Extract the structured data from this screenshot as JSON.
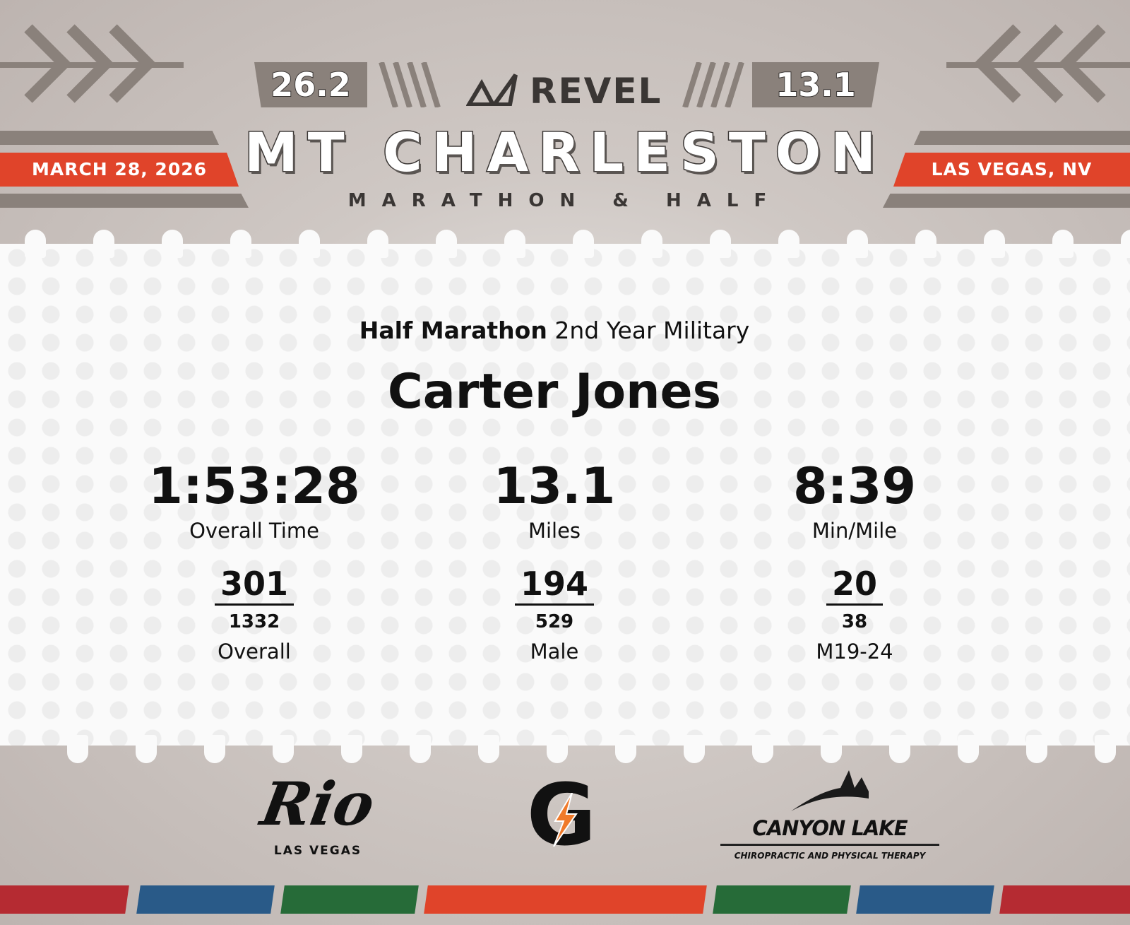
{
  "header": {
    "marathon_distance": "26.2",
    "half_distance": "13.1",
    "brand": "REVEL",
    "title": "MT CHARLESTON",
    "subtitle": "MARATHON & HALF",
    "date": "MARCH 28, 2026",
    "location": "LAS VEGAS, NV"
  },
  "result": {
    "race": "Half Marathon",
    "division": "2nd Year Military",
    "name": "Carter Jones",
    "stats": [
      {
        "value": "1:53:28",
        "label": "Overall Time"
      },
      {
        "value": "13.1",
        "label": "Miles"
      },
      {
        "value": "8:39",
        "label": "Min/Mile"
      }
    ],
    "ranks": [
      {
        "place": "301",
        "total": "1332",
        "label": "Overall"
      },
      {
        "place": "194",
        "total": "529",
        "label": "Male"
      },
      {
        "place": "20",
        "total": "38",
        "label": "M19-24"
      }
    ]
  },
  "sponsors": {
    "rio": {
      "name": "Rio",
      "sub": "LAS VEGAS"
    },
    "gatorade": {
      "name": "G"
    },
    "canyon": {
      "name": "CANYON LAKE",
      "sub": "CHIROPRACTIC AND PHYSICAL THERAPY"
    }
  },
  "colors": {
    "accent": "#e0442a",
    "gray": "#8a817b",
    "red": "#b52b32",
    "blue": "#295a88",
    "green": "#266b38",
    "orange": "#e0442a"
  }
}
